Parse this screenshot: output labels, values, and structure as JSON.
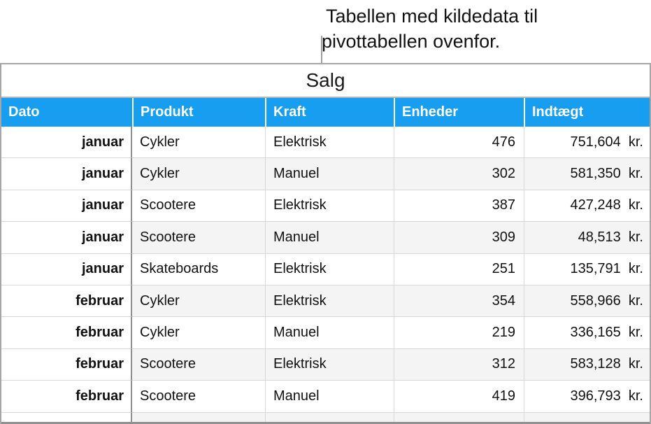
{
  "callout": {
    "line1": "Tabellen med kildedata til",
    "line2": "pivottabellen ovenfor."
  },
  "table": {
    "title": "Salg",
    "columns": [
      "Dato",
      "Produkt",
      "Kraft",
      "Enheder",
      "Indtægt"
    ],
    "rows": [
      [
        "januar",
        "Cykler",
        "Elektrisk",
        "476",
        "751,604  kr."
      ],
      [
        "januar",
        "Cykler",
        "Manuel",
        "302",
        "581,350  kr."
      ],
      [
        "januar",
        "Scootere",
        "Elektrisk",
        "387",
        "427,248  kr."
      ],
      [
        "januar",
        "Scootere",
        "Manuel",
        "309",
        "48,513  kr."
      ],
      [
        "januar",
        "Skateboards",
        "Elektrisk",
        "251",
        "135,791  kr."
      ],
      [
        "februar",
        "Cykler",
        "Elektrisk",
        "354",
        "558,966  kr."
      ],
      [
        "februar",
        "Cykler",
        "Manuel",
        "219",
        "336,165  kr."
      ],
      [
        "februar",
        "Scootere",
        "Elektrisk",
        "312",
        "583,128  kr."
      ],
      [
        "februar",
        "Scootere",
        "Manuel",
        "419",
        "396,793  kr."
      ]
    ]
  },
  "colors": {
    "header_bg": "#189ef0",
    "header_text": "#ffffff",
    "row_alt_bg": "#f4f4f4",
    "grid_line": "#d7d7d7",
    "dark_sep": "#8f8f8f",
    "outer_border": "#a6a6a6",
    "callout_line": "#9e9e9e"
  }
}
